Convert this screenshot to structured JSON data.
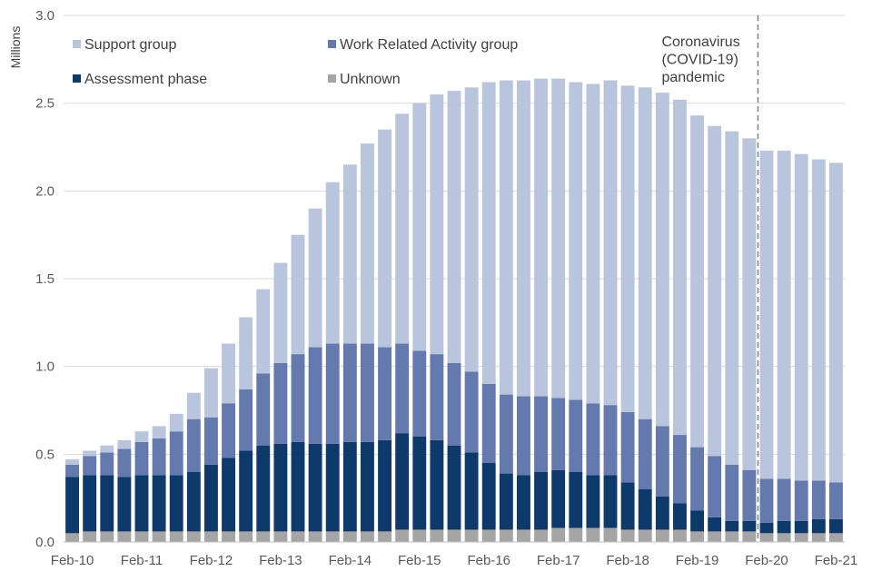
{
  "chart_data": {
    "type": "bar",
    "stacked": true,
    "ylabel": "Millions",
    "ylim": [
      0,
      3.0
    ],
    "yticks": [
      "0.0",
      "0.5",
      "1.0",
      "1.5",
      "2.0",
      "2.5",
      "3.0"
    ],
    "grid": true,
    "legend_position": "top-left",
    "xtick_labels": [
      "Feb-10",
      "Feb-11",
      "Feb-12",
      "Feb-13",
      "Feb-14",
      "Feb-15",
      "Feb-16",
      "Feb-17",
      "Feb-18",
      "Feb-19",
      "Feb-20",
      "Feb-21"
    ],
    "categories": [
      "Feb-10",
      "May-10",
      "Aug-10",
      "Nov-10",
      "Feb-11",
      "May-11",
      "Aug-11",
      "Nov-11",
      "Feb-12",
      "May-12",
      "Aug-12",
      "Nov-12",
      "Feb-13",
      "May-13",
      "Aug-13",
      "Nov-13",
      "Feb-14",
      "May-14",
      "Aug-14",
      "Nov-14",
      "Feb-15",
      "May-15",
      "Aug-15",
      "Nov-15",
      "Feb-16",
      "May-16",
      "Aug-16",
      "Nov-16",
      "Feb-17",
      "May-17",
      "Aug-17",
      "Nov-17",
      "Feb-18",
      "May-18",
      "Aug-18",
      "Nov-18",
      "Feb-19",
      "May-19",
      "Aug-19",
      "Nov-19",
      "Feb-20",
      "May-20",
      "Aug-20",
      "Nov-20",
      "Feb-21"
    ],
    "series": [
      {
        "name": "Unknown",
        "color": "#a5a5a5",
        "values": [
          0.05,
          0.06,
          0.06,
          0.06,
          0.06,
          0.06,
          0.06,
          0.06,
          0.06,
          0.06,
          0.06,
          0.06,
          0.06,
          0.06,
          0.06,
          0.06,
          0.06,
          0.06,
          0.06,
          0.07,
          0.07,
          0.07,
          0.07,
          0.07,
          0.07,
          0.07,
          0.07,
          0.07,
          0.08,
          0.08,
          0.08,
          0.08,
          0.07,
          0.07,
          0.07,
          0.07,
          0.06,
          0.06,
          0.06,
          0.06,
          0.05,
          0.05,
          0.05,
          0.05,
          0.05
        ]
      },
      {
        "name": "Assessment phase",
        "color": "#0e3a6b",
        "values": [
          0.32,
          0.32,
          0.32,
          0.31,
          0.32,
          0.32,
          0.32,
          0.34,
          0.38,
          0.42,
          0.46,
          0.49,
          0.5,
          0.51,
          0.5,
          0.5,
          0.51,
          0.51,
          0.52,
          0.55,
          0.53,
          0.51,
          0.48,
          0.44,
          0.38,
          0.32,
          0.31,
          0.33,
          0.33,
          0.32,
          0.3,
          0.3,
          0.27,
          0.23,
          0.19,
          0.15,
          0.12,
          0.08,
          0.06,
          0.06,
          0.06,
          0.07,
          0.07,
          0.08,
          0.08
        ]
      },
      {
        "name": "Work Related Activity group",
        "color": "#6479ad",
        "values": [
          0.07,
          0.11,
          0.13,
          0.16,
          0.19,
          0.21,
          0.25,
          0.3,
          0.27,
          0.31,
          0.35,
          0.41,
          0.46,
          0.5,
          0.55,
          0.57,
          0.56,
          0.56,
          0.53,
          0.51,
          0.49,
          0.49,
          0.47,
          0.46,
          0.45,
          0.45,
          0.45,
          0.43,
          0.41,
          0.41,
          0.41,
          0.4,
          0.4,
          0.4,
          0.4,
          0.39,
          0.36,
          0.35,
          0.32,
          0.29,
          0.25,
          0.24,
          0.23,
          0.22,
          0.21
        ]
      },
      {
        "name": "Support group",
        "color": "#b9c5dc",
        "values": [
          0.03,
          0.03,
          0.04,
          0.05,
          0.06,
          0.07,
          0.1,
          0.15,
          0.28,
          0.34,
          0.41,
          0.48,
          0.57,
          0.68,
          0.79,
          0.92,
          1.02,
          1.14,
          1.24,
          1.31,
          1.41,
          1.48,
          1.55,
          1.62,
          1.72,
          1.79,
          1.8,
          1.81,
          1.82,
          1.81,
          1.82,
          1.85,
          1.86,
          1.89,
          1.9,
          1.91,
          1.89,
          1.88,
          1.9,
          1.89,
          1.87,
          1.87,
          1.86,
          1.83,
          1.82
        ]
      }
    ],
    "legend_order": [
      "Support group",
      "Work Related Activity group",
      "Assessment phase",
      "Unknown"
    ],
    "annotation": {
      "lines": [
        "Coronavirus",
        "(COVID-19)",
        "pandemic"
      ],
      "at_category": "Feb-20",
      "line_style": "dashed"
    }
  }
}
